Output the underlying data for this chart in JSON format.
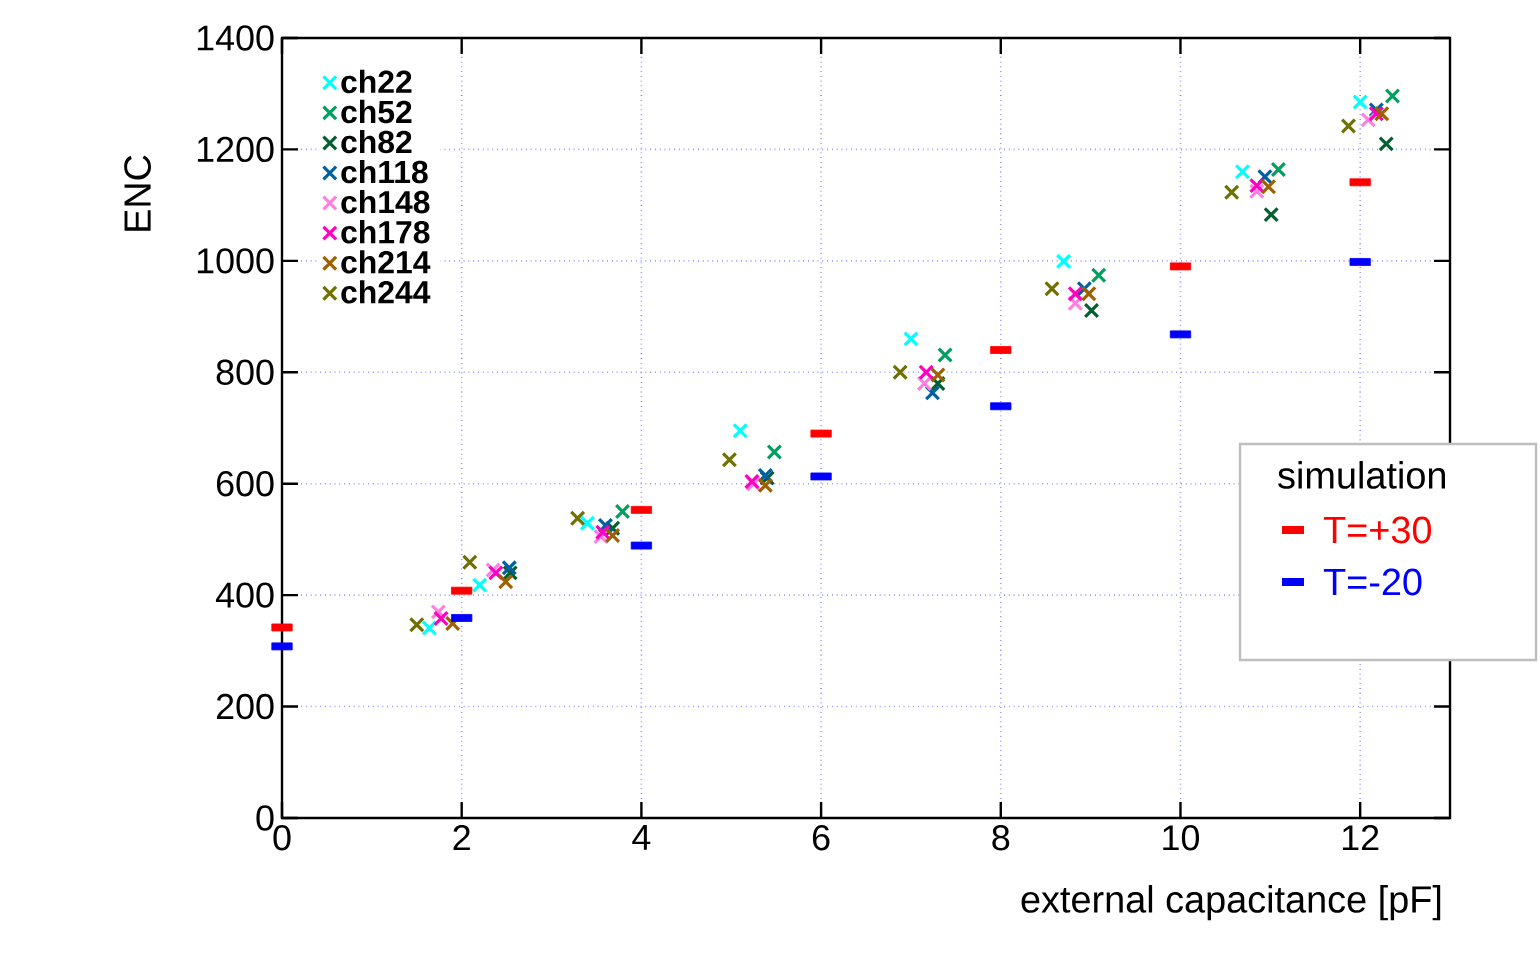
{
  "chart_data": {
    "type": "scatter",
    "xlabel": "external capacitance [pF]",
    "ylabel": "ENC",
    "legend_title": "simulation",
    "xlim": [
      0,
      13
    ],
    "ylim": [
      0,
      1400
    ],
    "xticks": [
      0,
      2,
      4,
      6,
      8,
      10,
      12
    ],
    "yticks": [
      0,
      200,
      400,
      600,
      800,
      1000,
      1200,
      1400
    ],
    "grid": true,
    "legend": "top left",
    "marker": "cross",
    "series": [
      {
        "name": "ch22",
        "color": "#00ffff",
        "x": [
          1.64,
          2.2,
          3.4,
          5.1,
          7.0,
          8.7,
          10.69,
          12.0
        ],
        "values": [
          341,
          418,
          529,
          695,
          860,
          999,
          1160,
          1285
        ]
      },
      {
        "name": "ch52",
        "color": "#00a060",
        "x": [
          null,
          null,
          3.79,
          5.48,
          7.38,
          9.09,
          11.09,
          12.36
        ],
        "values": [
          null,
          null,
          550,
          657,
          831,
          974,
          1164,
          1296
        ]
      },
      {
        "name": "ch82",
        "color": "#006030",
        "x": [
          null,
          2.54,
          3.68,
          5.4,
          7.3,
          9.01,
          11.01,
          12.29
        ],
        "values": [
          null,
          440,
          520,
          610,
          780,
          911,
          1083,
          1210
        ]
      },
      {
        "name": "ch118",
        "color": "#0060a0",
        "x": [
          null,
          2.53,
          3.6,
          5.38,
          7.24,
          8.93,
          10.94,
          12.18
        ],
        "values": [
          null,
          449,
          525,
          615,
          763,
          950,
          1151,
          1271
        ]
      },
      {
        "name": "ch148",
        "color": "#ff80e0",
        "x": [
          1.74,
          2.35,
          3.55,
          5.25,
          7.15,
          8.83,
          10.85,
          12.09
        ],
        "values": [
          370,
          445,
          505,
          600,
          780,
          924,
          1125,
          1253
        ]
      },
      {
        "name": "ch178",
        "color": "#ff00c0",
        "x": [
          1.77,
          2.38,
          3.57,
          5.23,
          7.17,
          8.83,
          10.85,
          12.18
        ],
        "values": [
          358,
          440,
          513,
          604,
          800,
          941,
          1135,
          1264
        ]
      },
      {
        "name": "ch214",
        "color": "#a06000",
        "x": [
          1.9,
          2.49,
          3.68,
          5.38,
          7.3,
          8.98,
          10.98,
          12.24
        ],
        "values": [
          349,
          424,
          507,
          597,
          795,
          941,
          1133,
          1264
        ]
      },
      {
        "name": "ch244",
        "color": "#707000",
        "x": [
          1.5,
          2.09,
          3.29,
          4.98,
          6.88,
          8.57,
          10.57,
          11.87
        ],
        "values": [
          347,
          459,
          538,
          643,
          800,
          950,
          1123,
          1242
        ]
      },
      {
        "name": "T=+30",
        "color": "#ff0000",
        "marker": "square",
        "x": [
          0,
          2,
          4,
          6,
          8,
          10,
          12
        ],
        "values": [
          342,
          408,
          553,
          690,
          840,
          990,
          1141
        ]
      },
      {
        "name": "T=-20",
        "color": "#0000ff",
        "marker": "square",
        "x": [
          0,
          2,
          4,
          6,
          8,
          10,
          12
        ],
        "values": [
          308,
          359,
          489,
          613,
          739,
          868,
          998
        ]
      }
    ]
  }
}
